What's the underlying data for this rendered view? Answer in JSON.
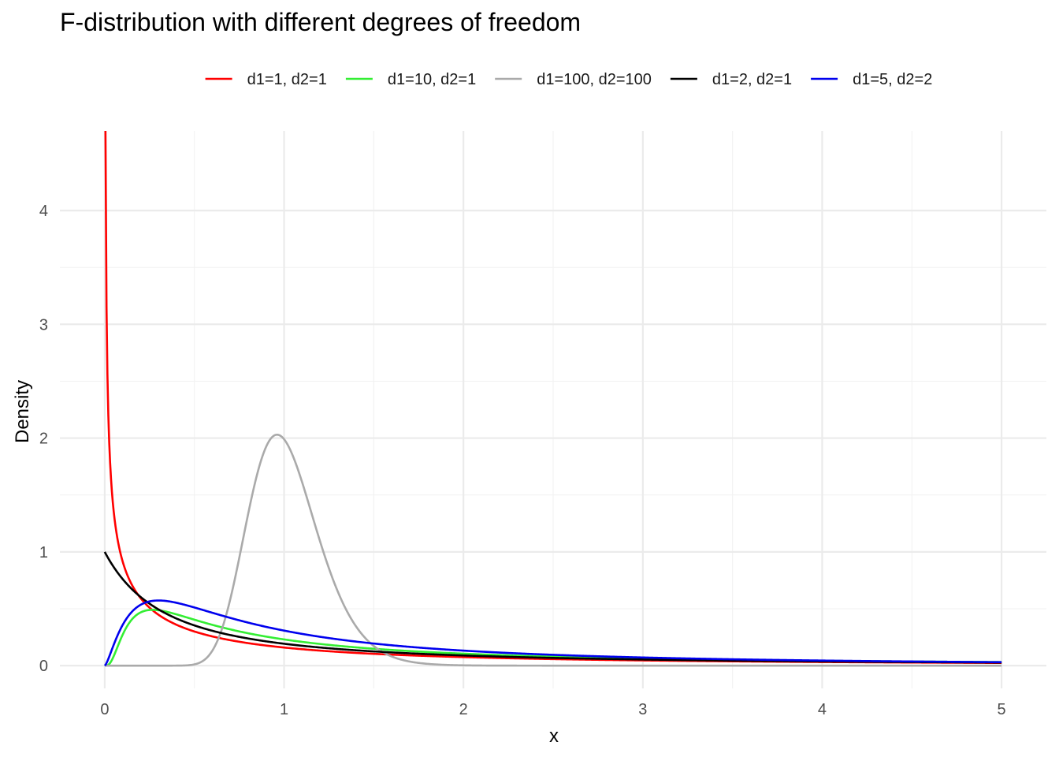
{
  "chart_data": {
    "type": "line",
    "title": "F-distribution with different degrees of freedom",
    "xlabel": "x",
    "ylabel": "Density",
    "xlim": [
      -0.25,
      5.25
    ],
    "ylim": [
      -0.2,
      4.7
    ],
    "x_ticks": [
      0,
      1,
      2,
      3,
      4,
      5
    ],
    "y_ticks": [
      0,
      1,
      2,
      3,
      4
    ],
    "grid": true,
    "legend_position": "top",
    "x_range": [
      0,
      5
    ],
    "series": [
      {
        "name": "d1=1, d2=1",
        "d1": 1,
        "d2": 1,
        "color": "#ff0000"
      },
      {
        "name": "d1=10, d2=1",
        "d1": 10,
        "d2": 1,
        "color": "#33ee33"
      },
      {
        "name": "d1=100, d2=100",
        "d1": 100,
        "d2": 100,
        "color": "#aaaaaa"
      },
      {
        "name": "d1=2, d2=1",
        "d1": 2,
        "d2": 1,
        "color": "#000000"
      },
      {
        "name": "d1=5, d2=2",
        "d1": 5,
        "d2": 2,
        "color": "#0000ee"
      }
    ]
  }
}
